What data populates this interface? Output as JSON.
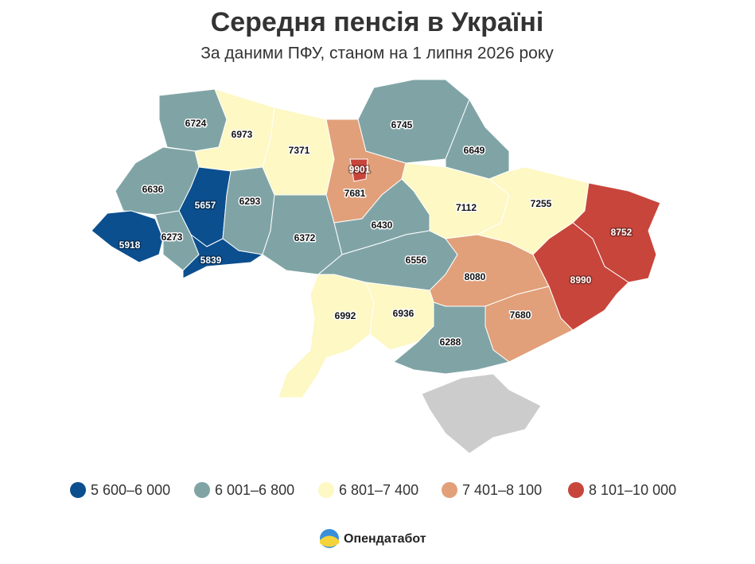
{
  "header": {
    "title": "Середня пенсія в Україні",
    "subtitle": "За даними ПФУ, станом на 1 липня 2026 року"
  },
  "map": {
    "regions": [
      {
        "value": 6724
      },
      {
        "value": 6973
      },
      {
        "value": 7371
      },
      {
        "value": 7681
      },
      {
        "value": 9901
      },
      {
        "value": 6745
      },
      {
        "value": 6649
      },
      {
        "value": 6636
      },
      {
        "value": 5657
      },
      {
        "value": 6293
      },
      {
        "value": 5918
      },
      {
        "value": 6273
      },
      {
        "value": 5839
      },
      {
        "value": 6372
      },
      {
        "value": 6430
      },
      {
        "value": 7112
      },
      {
        "value": 7255
      },
      {
        "value": 8752
      },
      {
        "value": 6556
      },
      {
        "value": 8080
      },
      {
        "value": 8990
      },
      {
        "value": 6992
      },
      {
        "value": 6936
      },
      {
        "value": 7680
      },
      {
        "value": 6288
      }
    ]
  },
  "legend": [
    {
      "label": "5 600–6 000",
      "min": 5600,
      "max": 6000,
      "color": "#0b4f8f"
    },
    {
      "label": "6 001–6 800",
      "min": 6001,
      "max": 6800,
      "color": "#80a4a6"
    },
    {
      "label": "6 801–7 400",
      "min": 6801,
      "max": 7400,
      "color": "#fdf8c4"
    },
    {
      "label": "7 401–8 100",
      "min": 7401,
      "max": 8100,
      "color": "#e1a07a"
    },
    {
      "label": "8 101–10 000",
      "min": 8101,
      "max": 10000,
      "color": "#c8453b"
    }
  ],
  "footer": {
    "brand": "Опендатабот"
  }
}
